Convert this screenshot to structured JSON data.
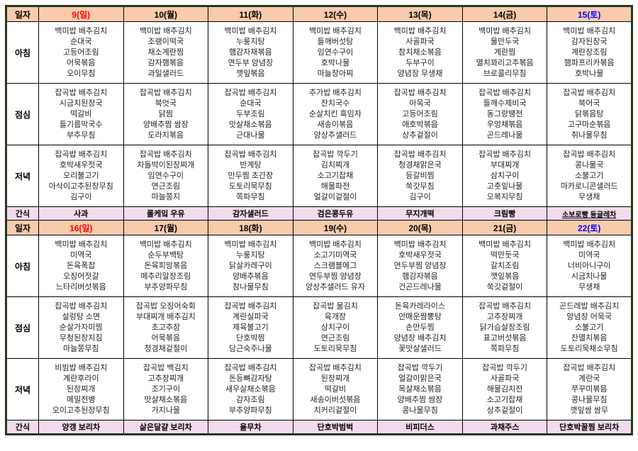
{
  "document": {
    "type": "weekly-meal-plan-table",
    "language": "ko"
  },
  "colors": {
    "header_bg": "#F8CBAD",
    "snack_bg": "#F2DBEC",
    "sunday": "#FF0000",
    "saturday": "#0000FF",
    "grid_border": "#000000",
    "outer_border": "#24391F"
  },
  "row_labels": {
    "date": "일자",
    "breakfast": "아침",
    "lunch": "점심",
    "dinner": "저녁",
    "snack": "간식"
  },
  "weeks": [
    {
      "dates": [
        {
          "label": "9(일)",
          "color": "sunday"
        },
        {
          "label": "10(월)",
          "color": null
        },
        {
          "label": "11(화)",
          "color": null
        },
        {
          "label": "12(수)",
          "color": null
        },
        {
          "label": "13(목)",
          "color": null
        },
        {
          "label": "14(금)",
          "color": null
        },
        {
          "label": "15(토)",
          "color": "saturday"
        }
      ],
      "breakfast": [
        "백미밥 배추김치\n순대국\n고등어조림\n어묵볶음\n오이무침",
        "백미밥 배추김치\n조랭이떡국\n채소계란찜\n감자햄볶음\n과일샐러드",
        "백미밥 배추김치\n누룽지탕\n햄감자채볶음\n연두부 양념장\n깻잎볶음",
        "백미밥 배추김치\n들깨버섯탕\n임연수구이\n호박나물\n마늘장아찌",
        "백미밥 배추김치\n사골파국\n참치채소볶음\n두부구이\n양념장 무생채",
        "백미밥 배추김치\n물만두국\n계란찜\n멸치꽈리고추볶음\n브로콜리무침",
        "백미밥 배추김치\n감자된장국\n계란장조림\n햄파프리카볶음\n호박나물"
      ],
      "lunch": [
        "잡곡밥 배추김치\n시금치된장국\n떡갈비\n들기름막국수\n부추무침",
        "잡곡밥 배추김치\n북엇국\n닭찜\n양배추찜 쌈장\n도라지볶음",
        "잡곡밥 배추김치\n순대국\n두부조림\n맛살채소볶음\n근대나물",
        "추가밥 배추김치\n잔치국수\n순살치킨 흑임자\n새송이볶음\n양상추샐러드",
        "잡곡밥 배추김치\n아욱국\n고등어조림\n애호박볶음\n상추겉절이",
        "잡곡밥 배추김치\n들깨수제비국\n동그랑땡전\n우엉채볶음\n곤드레나물",
        "잡곡밥 배추김치\n북어국\n닭볶음탕\n고구마순볶음\n취나물무침"
      ],
      "dinner": [
        "잡곡밥 배추김치\n호박새우젓국\n오리불고기\n아삭이고추된장무침\n김구이",
        "잡곡밥 배추김치\n차돌박이된장찌개\n임연수구이\n연근조림\n마늘쫑지",
        "잡곡밥 배추김치\n반계탕\n만두찜 초간장\n도토리묵무침\n쪽파무침",
        "잡곡밥 깍두기\n김치찌개\n소고기잡채\n해물파전\n얼갈이겉절이",
        "잡곡밥 배추김치\n청경채맑은국\n등갈비찜\n쑥갓무침\n김구이",
        "잡곡밥 배추김치\n부대찌개\n삼치구이\n고춧잎나물\n오복지무침",
        "잡곡밥 배추김치\n콩나물국\n소불고기\n마카로니콘샐러드\n무생채"
      ],
      "snack": [
        {
          "label": "사과",
          "underline": false
        },
        {
          "label": "롤케잌 우유",
          "underline": false
        },
        {
          "label": "감자샐러드",
          "underline": false
        },
        {
          "label": "검은콩두유",
          "underline": false
        },
        {
          "label": "무지개떡",
          "underline": false
        },
        {
          "label": "크림빵",
          "underline": false
        },
        {
          "label": "소보로빵 둥글레차",
          "underline": true
        }
      ]
    },
    {
      "dates": [
        {
          "label": "16(일)",
          "color": "sunday"
        },
        {
          "label": "17(월)",
          "color": null
        },
        {
          "label": "18(화)",
          "color": null
        },
        {
          "label": "19(수)",
          "color": null
        },
        {
          "label": "20(목)",
          "color": null
        },
        {
          "label": "21(금)",
          "color": null
        },
        {
          "label": "22(토)",
          "color": "saturday"
        }
      ],
      "breakfast": [
        "백미밥 배추김치\n미역국\n돈육폭찹\n오징어젓갈\n느타리버섯볶음",
        "백미밥 배추김치\n순두부백탕\n돈육피망볶음\n메추리알장조림\n부추양파무침",
        "백미밥 배추김치\n누룽지탕\n닭살카레구이\n양배추볶음\n참나물무침",
        "백미밥 배추김치\n소고기미역국\n스크램블에그\n연두부찜 양념장\n양상추샐러드 유자",
        "백미밥 배추김치\n호박새우젓국\n연두부찜 양념장\n햄감자볶음\n건곤드레나물",
        "백미밥 배추김치\n떡만둣국\n갈치조림\n깻잎볶음\n쑥갓겉절이",
        "백미밥 배추김치\n미역국\n너비아니구이\n시금치나물\n무생채"
      ],
      "lunch": [
        "잡곡밥 배추김치\n설렁탕 소면\n순살가자미찜\n무청된장지짐\n마늘쫑무침",
        "잡곡밥 오징어숙회\n부대찌개 배추김치\n초고추장\n어묵볶음\n청경채겉절이",
        "잡곡밥 배추김치\n계란실파국\n제육불고기\n단호박찜\n당근숙주나물",
        "잡곡밥 물김치\n육개장\n삼치구이\n연근조림\n도토리묵무침",
        "돈육카레라이스\n안매운짬뽕탕\n손만두찜\n양념장 배추김치\n꽃맛살샐러드",
        "잡곡밥 배추김치\n고추장찌개\n닭가슴살장조림\n표고버섯볶음\n쪽파무침",
        "곤드레밥 배추김치\n양념장 어묵국\n소불고기\n잔멸치볶음\n도토리묵채소무침"
      ],
      "dinner": [
        "비빔밥 배추김치\n계란후라이\n된장찌개\n메밀전병\n오이고추된장무침",
        "잡곡밥 백김치\n고추장찌개\n조기구이\n맛살채소볶음\n가지나물",
        "잡곡밥 배추김치\n돈등뼈감자탕\n새우살채소볶음\n감자조림\n부추양파무침",
        "잡곡밥 배추김치\n된장찌개\n떡갈비\n새송이버섯볶음\n치커리겉절이",
        "잡곡밥 깍두기\n얼갈이맑은국\n목살채소볶음\n양배추찜 쌈장\n콩나물무침",
        "잡곡밥 깍두기\n사골파국\n해물김치전\n소고기잡채\n상추겉절이",
        "잡곡밥 배추김치\n계란국\n쭈꾸미볶음\n콩나물무침\n깻잎쌈 쌈무"
      ],
      "snack": [
        {
          "label": "양갱 보리차",
          "underline": false
        },
        {
          "label": "삶은달걀 보리차",
          "underline": false
        },
        {
          "label": "율무차",
          "underline": false
        },
        {
          "label": "단호박범벅",
          "underline": false
        },
        {
          "label": "비피더스",
          "underline": false
        },
        {
          "label": "과채주스",
          "underline": false
        },
        {
          "label": "단호박꿀찜 보리차",
          "underline": false
        }
      ]
    }
  ]
}
